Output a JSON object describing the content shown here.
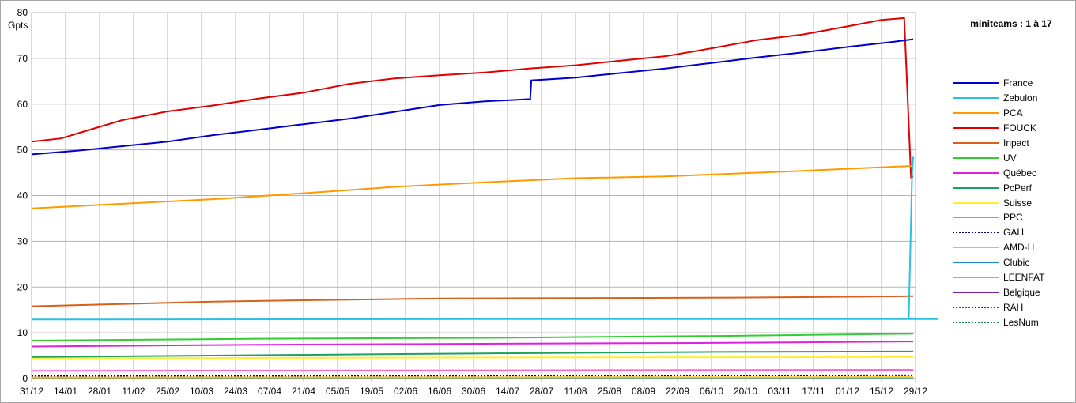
{
  "chart_data": {
    "type": "line",
    "title": "miniteams : 1 à 17",
    "ylabel": "Gpts",
    "xlabel": "",
    "ylim": [
      0,
      80
    ],
    "yticks": [
      0,
      10,
      20,
      30,
      40,
      50,
      60,
      70,
      80
    ],
    "grid": true,
    "legend_position": "right",
    "x_tick_labels": [
      "31/12",
      "14/01",
      "28/01",
      "11/02",
      "25/02",
      "10/03",
      "24/03",
      "07/04",
      "21/04",
      "05/05",
      "19/05",
      "02/06",
      "16/06",
      "30/06",
      "14/07",
      "28/07",
      "11/08",
      "25/08",
      "08/09",
      "22/09",
      "06/10",
      "20/10",
      "03/11",
      "17/11",
      "01/12",
      "15/12",
      "29/12"
    ],
    "series": [
      {
        "name": "France",
        "color": "#0000cc",
        "dash": "solid",
        "points": [
          [
            0,
            49
          ],
          [
            2,
            49.8
          ],
          [
            4,
            50.8
          ],
          [
            6,
            51.8
          ],
          [
            8,
            53.2
          ],
          [
            10,
            54.4
          ],
          [
            12,
            55.6
          ],
          [
            14,
            56.8
          ],
          [
            16,
            58.3
          ],
          [
            18,
            59.8
          ],
          [
            20,
            60.6
          ],
          [
            22,
            61.1
          ],
          [
            22.05,
            65.2
          ],
          [
            24,
            65.8
          ],
          [
            26,
            66.8
          ],
          [
            28,
            67.8
          ],
          [
            30,
            69
          ],
          [
            32,
            70.2
          ],
          [
            34,
            71.3
          ],
          [
            36,
            72.5
          ],
          [
            38,
            73.6
          ],
          [
            38.9,
            74.2
          ]
        ]
      },
      {
        "name": "Zebulon",
        "color": "#2bbfe0",
        "dash": "solid",
        "points": [
          [
            0,
            12.9
          ],
          [
            20,
            13
          ],
          [
            40,
            13
          ],
          [
            38.7,
            13.2
          ],
          [
            38.85,
            45
          ],
          [
            38.9,
            48.5
          ]
        ]
      },
      {
        "name": "PCA",
        "color": "#ff9900",
        "dash": "solid",
        "points": [
          [
            0,
            37.2
          ],
          [
            4,
            38.2
          ],
          [
            8,
            39.2
          ],
          [
            12,
            40.5
          ],
          [
            16,
            41.9
          ],
          [
            20,
            42.9
          ],
          [
            24,
            43.8
          ],
          [
            28,
            44.2
          ],
          [
            30,
            44.6
          ],
          [
            34,
            45.4
          ],
          [
            38.9,
            46.5
          ]
        ]
      },
      {
        "name": "FOUCK",
        "color": "#e00000",
        "dash": "solid",
        "points": [
          [
            0,
            51.8
          ],
          [
            1.3,
            52.5
          ],
          [
            2.3,
            54
          ],
          [
            4,
            56.5
          ],
          [
            6,
            58.4
          ],
          [
            8,
            59.7
          ],
          [
            10,
            61.2
          ],
          [
            12,
            62.5
          ],
          [
            14,
            64.4
          ],
          [
            16,
            65.6
          ],
          [
            18,
            66.3
          ],
          [
            20,
            66.9
          ],
          [
            22,
            67.8
          ],
          [
            24,
            68.5
          ],
          [
            26,
            69.5
          ],
          [
            28,
            70.5
          ],
          [
            30,
            72.2
          ],
          [
            32,
            74
          ],
          [
            34,
            75.2
          ],
          [
            36,
            77
          ],
          [
            37.5,
            78.4
          ],
          [
            38.5,
            78.8
          ],
          [
            38.8,
            44
          ],
          [
            38.9,
            44.2
          ]
        ]
      },
      {
        "name": "Inpact",
        "color": "#d9601a",
        "dash": "solid",
        "points": [
          [
            0,
            15.8
          ],
          [
            4,
            16.3
          ],
          [
            8,
            16.8
          ],
          [
            12,
            17.1
          ],
          [
            18,
            17.5
          ],
          [
            26,
            17.6
          ],
          [
            31,
            17.7
          ],
          [
            34,
            17.8
          ],
          [
            38.9,
            18
          ]
        ]
      },
      {
        "name": "UV",
        "color": "#33cc33",
        "dash": "solid",
        "points": [
          [
            0,
            8.3
          ],
          [
            10,
            8.7
          ],
          [
            20,
            8.9
          ],
          [
            30,
            9.3
          ],
          [
            38.9,
            9.8
          ]
        ]
      },
      {
        "name": "Québec",
        "color": "#e020e0",
        "dash": "solid",
        "points": [
          [
            0,
            7
          ],
          [
            10,
            7.4
          ],
          [
            20,
            7.6
          ],
          [
            30,
            7.8
          ],
          [
            38.9,
            8.1
          ]
        ]
      },
      {
        "name": "PcPerf",
        "color": "#1fa060",
        "dash": "solid",
        "points": [
          [
            0,
            4.7
          ],
          [
            10,
            5.1
          ],
          [
            20,
            5.5
          ],
          [
            30,
            5.8
          ],
          [
            38.9,
            5.9
          ]
        ]
      },
      {
        "name": "Suisse",
        "color": "#ffee33",
        "dash": "solid",
        "points": [
          [
            0,
            4.4
          ],
          [
            20,
            4.6
          ],
          [
            38.9,
            4.7
          ]
        ]
      },
      {
        "name": "PPC",
        "color": "#ff66cc",
        "dash": "solid",
        "points": [
          [
            0,
            1.7
          ],
          [
            20,
            1.8
          ],
          [
            38.9,
            1.9
          ]
        ]
      },
      {
        "name": "GAH",
        "color": "#000080",
        "dash": "dot",
        "points": [
          [
            0,
            0.6
          ],
          [
            38.9,
            0.7
          ]
        ]
      },
      {
        "name": "AMD-H",
        "color": "#ffbb00",
        "dash": "solid",
        "points": [
          [
            0,
            0.25
          ],
          [
            38.9,
            0.3
          ]
        ]
      },
      {
        "name": "Clubic",
        "color": "#1a88cc",
        "dash": "solid",
        "points": [
          [
            0,
            0.18
          ],
          [
            38.9,
            0.2
          ]
        ]
      },
      {
        "name": "LEENFAT",
        "color": "#33dddd",
        "dash": "solid",
        "points": [
          [
            0,
            0.12
          ],
          [
            38.9,
            0.15
          ]
        ]
      },
      {
        "name": "Belgique",
        "color": "#7a1fa0",
        "dash": "solid",
        "points": [
          [
            0,
            0.08
          ],
          [
            38.9,
            0.1
          ]
        ]
      },
      {
        "name": "RAH",
        "color": "#e00000",
        "dash": "dot",
        "points": [
          [
            0,
            0.05
          ],
          [
            38.9,
            0.06
          ]
        ]
      },
      {
        "name": "LesNum",
        "color": "#1a8050",
        "dash": "dot",
        "points": [
          [
            0,
            0.03
          ],
          [
            38.9,
            0.04
          ]
        ]
      }
    ]
  }
}
